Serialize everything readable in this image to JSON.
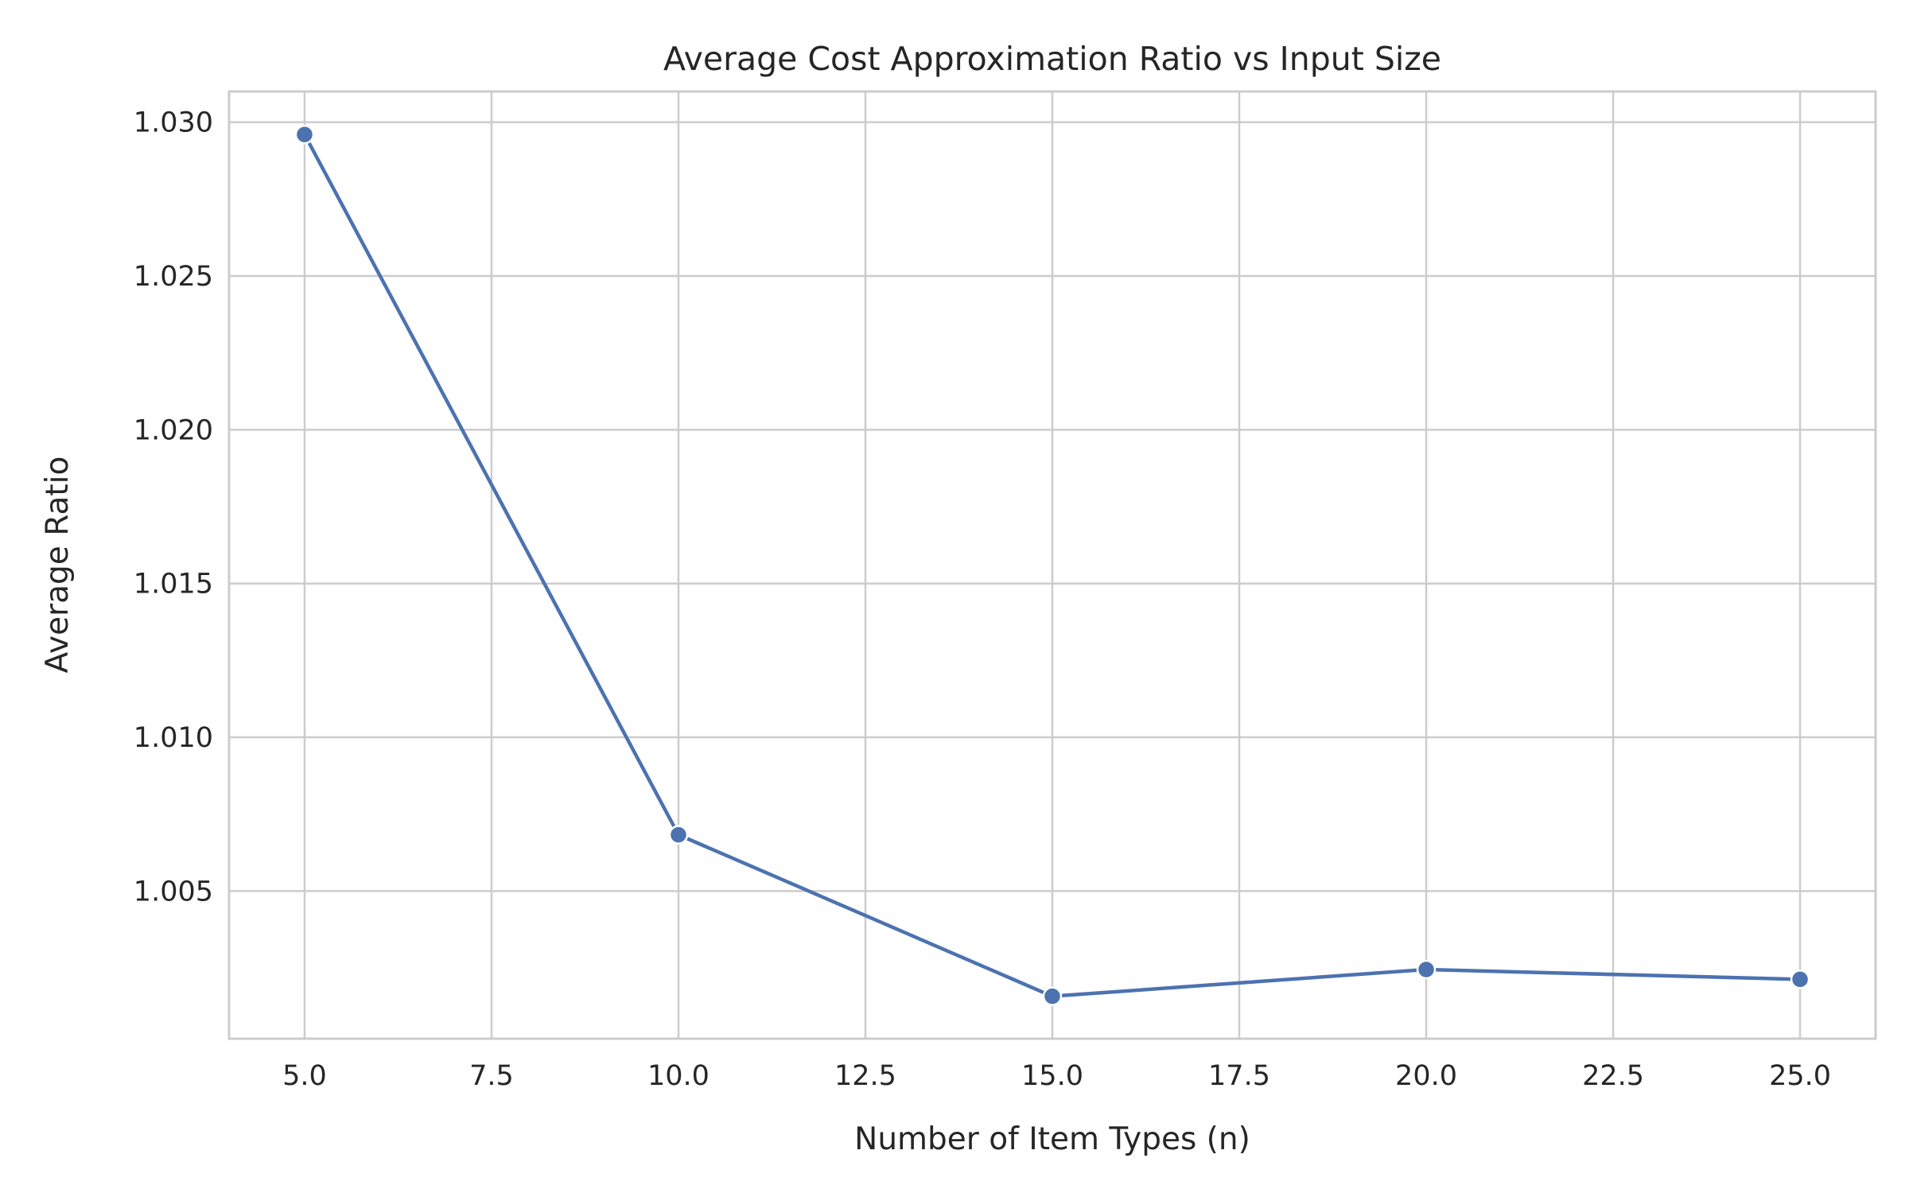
{
  "chart_data": {
    "type": "line",
    "title": "Average Cost Approximation Ratio vs Input Size",
    "xlabel": "Number of Item Types (n)",
    "ylabel": "Average Ratio",
    "x": [
      5,
      10,
      15,
      20,
      25
    ],
    "series": [
      {
        "name": "Average Ratio",
        "values": [
          1.0296,
          1.00683,
          1.00158,
          1.00245,
          1.00213
        ],
        "color": "#4c72b0"
      }
    ],
    "xlim": [
      3.99,
      26.01
    ],
    "ylim": [
      1.0002,
      1.031
    ],
    "xticks": [
      5.0,
      7.5,
      10.0,
      12.5,
      15.0,
      17.5,
      20.0,
      22.5,
      25.0
    ],
    "xtick_labels": [
      "5.0",
      "7.5",
      "10.0",
      "12.5",
      "15.0",
      "17.5",
      "20.0",
      "22.5",
      "25.0"
    ],
    "yticks": [
      1.005,
      1.01,
      1.015,
      1.02,
      1.025,
      1.03
    ],
    "ytick_labels": [
      "1.005",
      "1.010",
      "1.015",
      "1.020",
      "1.025",
      "1.030"
    ],
    "grid": true,
    "legend": "none"
  }
}
